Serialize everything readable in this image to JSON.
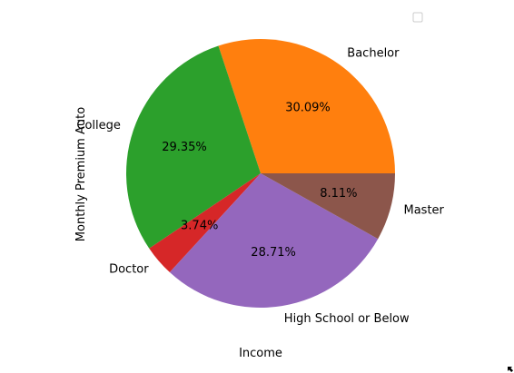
{
  "chart_data": {
    "type": "pie",
    "xlabel": "Income",
    "ylabel": "Monthly Premium Auto",
    "slices": [
      {
        "label": "Bachelor",
        "value": 30.09,
        "pct_label": "30.09%",
        "color": "#ff7f0e"
      },
      {
        "label": "College",
        "value": 29.35,
        "pct_label": "29.35%",
        "color": "#2ca02c"
      },
      {
        "label": "Doctor",
        "value": 3.74,
        "pct_label": "3.74%",
        "color": "#d62728"
      },
      {
        "label": "High School or Below",
        "value": 28.71,
        "pct_label": "28.71%",
        "color": "#9467bd"
      },
      {
        "label": "Master",
        "value": 8.11,
        "pct_label": "8.11%",
        "color": "#8c564b"
      }
    ],
    "legend": {
      "placement": "top-right",
      "entries": []
    }
  },
  "icons": {
    "corner_cursor": "resize-arrow-icon"
  }
}
